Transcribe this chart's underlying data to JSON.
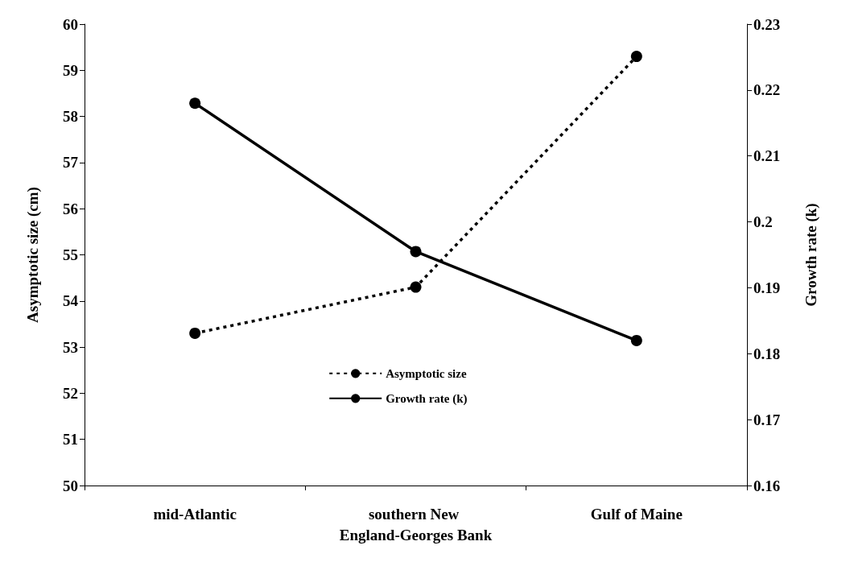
{
  "chart_data": {
    "type": "line",
    "ylabel": "Asymptotic size (cm)",
    "y2label": "Growth rate (k)",
    "categories": [
      "mid-Atlantic",
      "southern New England-Georges Bank",
      "Gulf of Maine"
    ],
    "series": [
      {
        "name": "Asymptotic size",
        "color": "#000000",
        "values": [
          53.3,
          54.3,
          59.3
        ],
        "line_style": "dashed"
      },
      {
        "name": "Growth rate (k)",
        "color": "#000000",
        "values": [
          0.218,
          0.1955,
          0.182
        ],
        "axis": "y2",
        "line_style": "solid"
      }
    ],
    "ylim": [
      50,
      60
    ],
    "yticks": [
      50,
      51,
      52,
      53,
      54,
      55,
      56,
      57,
      58,
      59,
      60
    ],
    "y2lim": [
      0.16,
      0.23
    ],
    "y2ticks": [
      0.16,
      0.17,
      0.18,
      0.19,
      0.2,
      0.21,
      0.22,
      0.23
    ],
    "grid": false,
    "legend": "center",
    "marker": "circle"
  }
}
